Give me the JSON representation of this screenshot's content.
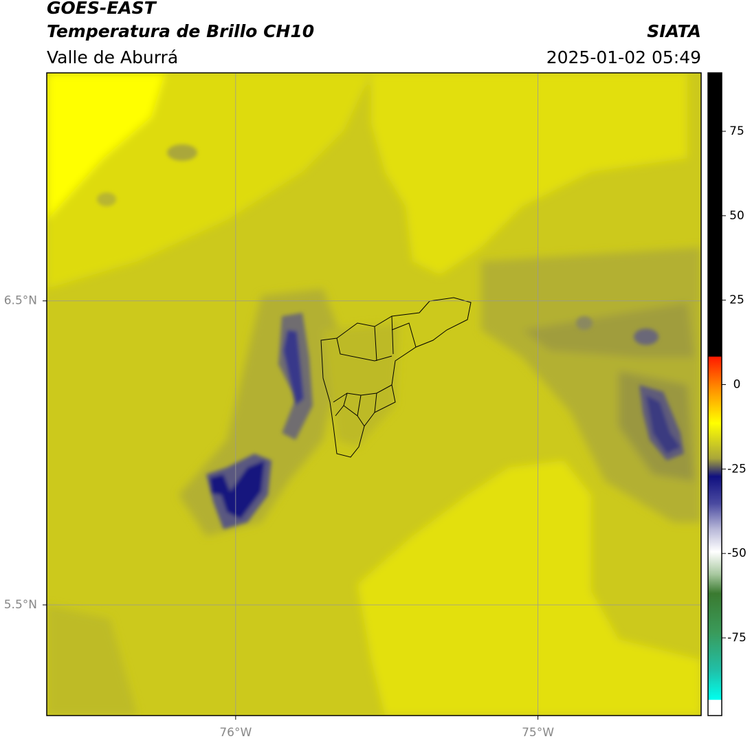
{
  "header": {
    "title": "GOES-EAST",
    "subtitle": "Temperatura de Brillo CH10",
    "region": "Valle de Aburrá",
    "source": "SIATA",
    "datetime": "2025-01-02 05:49"
  },
  "map": {
    "xlim": [
      -76.625,
      -74.46
    ],
    "ylim": [
      5.136,
      7.25
    ],
    "xticks": [
      {
        "value": -76,
        "label": "76°W"
      },
      {
        "value": -75,
        "label": "75°W"
      }
    ],
    "yticks": [
      {
        "value": 6.5,
        "label": "6.5°N"
      },
      {
        "value": 5.5,
        "label": "5.5°N"
      }
    ],
    "grid": true
  },
  "colorbar": {
    "lim": [
      -98,
      92.3
    ],
    "ticks": [
      75,
      50,
      25,
      0,
      -25,
      -50,
      -75
    ]
  }
}
